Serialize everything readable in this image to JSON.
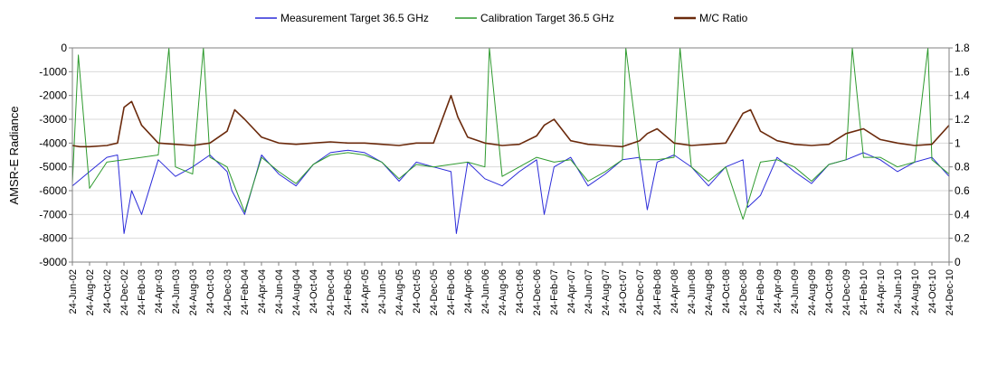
{
  "chart_data": {
    "type": "line",
    "title": "",
    "xlabel": "",
    "ylabel": "AMSR-E Radiance",
    "y2label": "",
    "ylim": [
      -9000,
      0
    ],
    "y2lim": [
      0,
      1.8
    ],
    "yticks": [
      0,
      -1000,
      -2000,
      -3000,
      -4000,
      -5000,
      -6000,
      -7000,
      -8000,
      -9000
    ],
    "y2ticks": [
      "1.8",
      "1.6",
      "1.4",
      "1.2",
      "1",
      "0.8",
      "0.6",
      "0.4",
      "0.2",
      "0"
    ],
    "grid": "horizontal",
    "legend_placement": "top",
    "x_start": "2002-06-24",
    "x_end": "2010-12-24",
    "categories": [
      "24-Jun-02",
      "24-Aug-02",
      "24-Oct-02",
      "24-Dec-02",
      "24-Feb-03",
      "24-Apr-03",
      "24-Jun-03",
      "24-Aug-03",
      "24-Oct-03",
      "24-Dec-03",
      "24-Feb-04",
      "24-Apr-04",
      "24-Jun-04",
      "24-Aug-04",
      "24-Oct-04",
      "24-Dec-04",
      "24-Feb-05",
      "24-Apr-05",
      "24-Jun-05",
      "24-Aug-05",
      "24-Oct-05",
      "24-Dec-05",
      "24-Feb-06",
      "24-Apr-06",
      "24-Jun-06",
      "24-Aug-06",
      "24-Oct-06",
      "24-Dec-06",
      "24-Feb-07",
      "24-Apr-07",
      "24-Jun-07",
      "24-Aug-07",
      "24-Oct-07",
      "24-Dec-07",
      "24-Feb-08",
      "24-Apr-08",
      "24-Jun-08",
      "24-Aug-08",
      "24-Oct-08",
      "24-Dec-08",
      "24-Feb-09",
      "24-Apr-09",
      "24-Jun-09",
      "24-Aug-09",
      "24-Oct-09",
      "24-Dec-09",
      "24-Feb-10",
      "24-Apr-10",
      "24-Jun-10",
      "24-Aug-10",
      "24-Oct-10",
      "24-Dec-10"
    ],
    "series": [
      {
        "name": "Measurement Target 36.5 GHz",
        "axis": "left",
        "color": "#2b2bd9",
        "x": [
          "2002-06-24",
          "2002-08-24",
          "2002-10-24",
          "2002-12-01",
          "2002-12-24",
          "2003-01-20",
          "2003-02-24",
          "2003-04-24",
          "2003-06-24",
          "2003-08-24",
          "2003-10-24",
          "2003-12-24",
          "2004-01-10",
          "2004-02-24",
          "2004-04-24",
          "2004-06-24",
          "2004-08-24",
          "2004-10-24",
          "2004-12-24",
          "2005-02-24",
          "2005-04-24",
          "2005-06-24",
          "2005-08-24",
          "2005-10-24",
          "2005-12-24",
          "2006-02-24",
          "2006-03-15",
          "2006-04-24",
          "2006-06-24",
          "2006-08-24",
          "2006-10-24",
          "2006-12-24",
          "2007-01-20",
          "2007-02-24",
          "2007-04-24",
          "2007-06-24",
          "2007-08-24",
          "2007-10-24",
          "2007-12-24",
          "2008-01-20",
          "2008-02-24",
          "2008-04-24",
          "2008-06-24",
          "2008-08-24",
          "2008-10-24",
          "2008-12-24",
          "2009-01-10",
          "2009-02-24",
          "2009-04-24",
          "2009-06-24",
          "2009-08-24",
          "2009-10-24",
          "2009-12-24",
          "2010-02-24",
          "2010-04-24",
          "2010-06-24",
          "2010-08-24",
          "2010-10-24",
          "2010-12-24"
        ],
        "y": [
          -5800,
          -5200,
          -4600,
          -4500,
          -7800,
          -6000,
          -7000,
          -4700,
          -5400,
          -5000,
          -4500,
          -5200,
          -6000,
          -7000,
          -4500,
          -5300,
          -5800,
          -4900,
          -4400,
          -4300,
          -4400,
          -4800,
          -5600,
          -4800,
          -5000,
          -5200,
          -7800,
          -4800,
          -5500,
          -5800,
          -5200,
          -4700,
          -7000,
          -5000,
          -4600,
          -5800,
          -5300,
          -4700,
          -4600,
          -6800,
          -4800,
          -4500,
          -5000,
          -5800,
          -5000,
          -4700,
          -6700,
          -6200,
          -4600,
          -5200,
          -5700,
          -4900,
          -4700,
          -4400,
          -4700,
          -5200,
          -4800,
          -4600,
          -5400
        ]
      },
      {
        "name": "Calibration Target 36.5 GHz",
        "axis": "left",
        "color": "#2e9a2e",
        "x": [
          "2002-06-24",
          "2002-07-15",
          "2002-08-24",
          "2002-10-24",
          "2002-12-24",
          "2003-02-24",
          "2003-04-24",
          "2003-06-01",
          "2003-06-24",
          "2003-08-24",
          "2003-10-01",
          "2003-10-24",
          "2003-12-24",
          "2004-02-24",
          "2004-04-24",
          "2004-06-24",
          "2004-08-24",
          "2004-10-24",
          "2004-12-24",
          "2005-02-24",
          "2005-04-24",
          "2005-06-24",
          "2005-08-24",
          "2005-10-24",
          "2005-12-24",
          "2006-02-24",
          "2006-04-24",
          "2006-06-24",
          "2006-07-10",
          "2006-08-24",
          "2006-10-24",
          "2006-12-24",
          "2007-02-24",
          "2007-04-24",
          "2007-06-24",
          "2007-08-24",
          "2007-10-24",
          "2007-11-05",
          "2007-12-24",
          "2008-02-24",
          "2008-04-24",
          "2008-05-15",
          "2008-06-24",
          "2008-08-24",
          "2008-10-24",
          "2008-12-24",
          "2009-02-24",
          "2009-04-24",
          "2009-06-24",
          "2009-08-24",
          "2009-10-24",
          "2009-12-24",
          "2010-01-15",
          "2010-02-24",
          "2010-04-24",
          "2010-06-24",
          "2010-08-24",
          "2010-10-10",
          "2010-10-24",
          "2010-12-24"
        ],
        "y": [
          -5700,
          -300,
          -5900,
          -4800,
          -4700,
          -4600,
          -4500,
          0,
          -5000,
          -5300,
          0,
          -4600,
          -5000,
          -6900,
          -4600,
          -5200,
          -5700,
          -4900,
          -4500,
          -4400,
          -4500,
          -4800,
          -5500,
          -4900,
          -5000,
          -4900,
          -4800,
          -5000,
          0,
          -5400,
          -5000,
          -4600,
          -4800,
          -4700,
          -5600,
          -5200,
          -4700,
          0,
          -4700,
          -4700,
          -4600,
          0,
          -5000,
          -5600,
          -5000,
          -7200,
          -4800,
          -4700,
          -5000,
          -5600,
          -4900,
          -4700,
          0,
          -4600,
          -4600,
          -5000,
          -4800,
          0,
          -4700,
          -5300
        ]
      },
      {
        "name": "M/C Ratio",
        "axis": "right",
        "color": "#6b2a0c",
        "x": [
          "2002-06-24",
          "2002-07-20",
          "2002-08-24",
          "2002-10-24",
          "2002-12-01",
          "2002-12-24",
          "2003-01-20",
          "2003-02-24",
          "2003-04-24",
          "2003-06-24",
          "2003-08-24",
          "2003-10-24",
          "2003-12-24",
          "2004-01-20",
          "2004-02-24",
          "2004-04-24",
          "2004-06-24",
          "2004-08-24",
          "2004-10-24",
          "2004-12-24",
          "2005-02-24",
          "2005-04-24",
          "2005-06-24",
          "2005-08-24",
          "2005-10-24",
          "2005-12-24",
          "2006-02-24",
          "2006-03-20",
          "2006-04-24",
          "2006-06-24",
          "2006-08-24",
          "2006-10-24",
          "2006-12-24",
          "2007-01-20",
          "2007-02-24",
          "2007-04-24",
          "2007-06-24",
          "2007-08-24",
          "2007-10-24",
          "2007-12-24",
          "2008-01-20",
          "2008-02-24",
          "2008-04-24",
          "2008-06-24",
          "2008-08-24",
          "2008-10-24",
          "2008-12-24",
          "2009-01-20",
          "2009-02-24",
          "2009-04-24",
          "2009-06-24",
          "2009-08-24",
          "2009-10-24",
          "2009-12-24",
          "2010-02-24",
          "2010-04-24",
          "2010-06-24",
          "2010-08-24",
          "2010-10-24",
          "2010-12-24"
        ],
        "y": [
          0.98,
          0.97,
          0.97,
          0.98,
          1.0,
          1.3,
          1.35,
          1.15,
          1.0,
          0.99,
          0.98,
          1.0,
          1.1,
          1.28,
          1.2,
          1.05,
          1.0,
          0.99,
          1.0,
          1.01,
          1.0,
          1.0,
          0.99,
          0.98,
          1.0,
          1.0,
          1.4,
          1.22,
          1.05,
          1.0,
          0.98,
          0.99,
          1.06,
          1.15,
          1.2,
          1.02,
          0.99,
          0.98,
          0.97,
          1.02,
          1.08,
          1.12,
          1.0,
          0.98,
          0.99,
          1.0,
          1.25,
          1.28,
          1.1,
          1.02,
          0.99,
          0.98,
          0.99,
          1.08,
          1.12,
          1.03,
          1.0,
          0.98,
          0.99,
          1.15
        ]
      }
    ]
  }
}
